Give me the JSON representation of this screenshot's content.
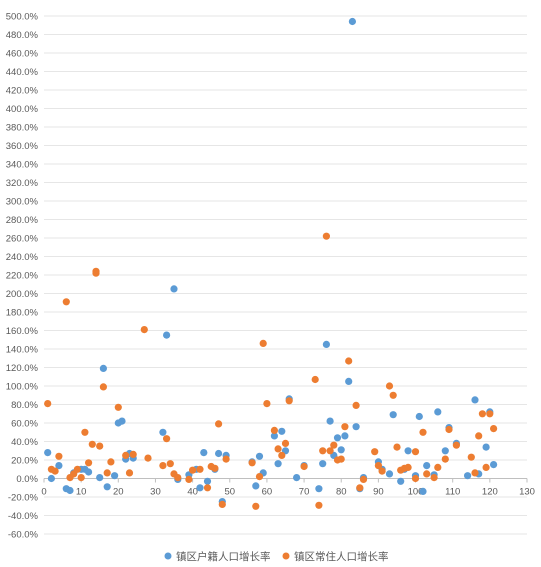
{
  "chart_data": {
    "type": "scatter",
    "title": "",
    "xlabel": "",
    "ylabel": "",
    "xlim": [
      0,
      130
    ],
    "ylim": [
      -60,
      500
    ],
    "x_ticks": [
      0,
      10,
      20,
      30,
      40,
      50,
      60,
      70,
      80,
      90,
      100,
      110,
      120,
      130
    ],
    "y_ticks": [
      -60,
      -40,
      -20,
      0,
      20,
      40,
      60,
      80,
      100,
      120,
      140,
      160,
      180,
      200,
      220,
      240,
      260,
      280,
      300,
      320,
      340,
      360,
      380,
      400,
      420,
      440,
      460,
      480,
      500
    ],
    "x_tick_labels": [
      "0",
      "10",
      "20",
      "30",
      "40",
      "50",
      "60",
      "70",
      "80",
      "90",
      "100",
      "110",
      "120",
      "130"
    ],
    "y_tick_labels": [
      "-60.0%",
      "-40.0%",
      "-20.0%",
      "0.0%",
      "20.0%",
      "40.0%",
      "60.0%",
      "80.0%",
      "100.0%",
      "120.0%",
      "140.0%",
      "160.0%",
      "180.0%",
      "200.0%",
      "220.0%",
      "240.0%",
      "260.0%",
      "280.0%",
      "300.0%",
      "320.0%",
      "340.0%",
      "360.0%",
      "380.0%",
      "400.0%",
      "420.0%",
      "440.0%",
      "460.0%",
      "480.0%",
      "500.0%"
    ],
    "gridlines": "horizontal",
    "legend_position": "bottom",
    "series": [
      {
        "name": "镇区户籍人口增长率",
        "color": "#5b9bd5",
        "points": [
          [
            1,
            28
          ],
          [
            2,
            0
          ],
          [
            4,
            14
          ],
          [
            6,
            -11
          ],
          [
            7,
            -13
          ],
          [
            8,
            6
          ],
          [
            10,
            10
          ],
          [
            11,
            10
          ],
          [
            12,
            7
          ],
          [
            15,
            1
          ],
          [
            16,
            119
          ],
          [
            17,
            -9
          ],
          [
            19,
            3
          ],
          [
            20,
            60
          ],
          [
            21,
            62
          ],
          [
            22,
            21
          ],
          [
            23,
            27
          ],
          [
            24,
            22
          ],
          [
            32,
            50
          ],
          [
            33,
            155
          ],
          [
            35,
            205
          ],
          [
            36,
            -1
          ],
          [
            39,
            4
          ],
          [
            41,
            10
          ],
          [
            42,
            -10
          ],
          [
            43,
            28
          ],
          [
            44,
            -3
          ],
          [
            46,
            10
          ],
          [
            47,
            27
          ],
          [
            48,
            -25
          ],
          [
            49,
            25
          ],
          [
            56,
            18
          ],
          [
            57,
            -8
          ],
          [
            58,
            24
          ],
          [
            59,
            6
          ],
          [
            62,
            46
          ],
          [
            63,
            16
          ],
          [
            64,
            51
          ],
          [
            65,
            30
          ],
          [
            66,
            86
          ],
          [
            68,
            1
          ],
          [
            70,
            14
          ],
          [
            74,
            -11
          ],
          [
            75,
            16
          ],
          [
            76,
            145
          ],
          [
            77,
            62
          ],
          [
            78,
            25
          ],
          [
            79,
            44
          ],
          [
            80,
            31
          ],
          [
            81,
            46
          ],
          [
            82,
            105
          ],
          [
            83,
            494
          ],
          [
            84,
            56
          ],
          [
            85,
            -11
          ],
          [
            86,
            1
          ],
          [
            90,
            18
          ],
          [
            91,
            10
          ],
          [
            93,
            5
          ],
          [
            94,
            69
          ],
          [
            96,
            -3
          ],
          [
            97,
            10
          ],
          [
            98,
            30
          ],
          [
            100,
            3
          ],
          [
            101,
            67
          ],
          [
            102,
            -14
          ],
          [
            103,
            14
          ],
          [
            105,
            4
          ],
          [
            106,
            72
          ],
          [
            108,
            30
          ],
          [
            109,
            55
          ],
          [
            111,
            38
          ],
          [
            114,
            3
          ],
          [
            116,
            85
          ],
          [
            117,
            5
          ],
          [
            119,
            34
          ],
          [
            120,
            72
          ],
          [
            121,
            15
          ]
        ]
      },
      {
        "name": "镇区常住人口增长率",
        "color": "#ed7d31",
        "points": [
          [
            1,
            81
          ],
          [
            2,
            10
          ],
          [
            3,
            8
          ],
          [
            4,
            24
          ],
          [
            6,
            191
          ],
          [
            7,
            1
          ],
          [
            8,
            5
          ],
          [
            9,
            10
          ],
          [
            10,
            1
          ],
          [
            11,
            50
          ],
          [
            12,
            17
          ],
          [
            13,
            37
          ],
          [
            14,
            224
          ],
          [
            14,
            222
          ],
          [
            15,
            35
          ],
          [
            16,
            99
          ],
          [
            17,
            6
          ],
          [
            18,
            18
          ],
          [
            20,
            77
          ],
          [
            22,
            25
          ],
          [
            23,
            6
          ],
          [
            24,
            26
          ],
          [
            28,
            22
          ],
          [
            27,
            161
          ],
          [
            32,
            14
          ],
          [
            33,
            43
          ],
          [
            34,
            16
          ],
          [
            35,
            5
          ],
          [
            36,
            1
          ],
          [
            39,
            -1
          ],
          [
            40,
            9
          ],
          [
            42,
            10
          ],
          [
            44,
            -10
          ],
          [
            45,
            13
          ],
          [
            46,
            11
          ],
          [
            47,
            59
          ],
          [
            48,
            -28
          ],
          [
            49,
            21
          ],
          [
            56,
            17
          ],
          [
            57,
            -30
          ],
          [
            58,
            2
          ],
          [
            59,
            146
          ],
          [
            60,
            81
          ],
          [
            62,
            52
          ],
          [
            63,
            32
          ],
          [
            64,
            25
          ],
          [
            65,
            38
          ],
          [
            66,
            84
          ],
          [
            70,
            13
          ],
          [
            73,
            107
          ],
          [
            74,
            -29
          ],
          [
            75,
            30
          ],
          [
            76,
            262
          ],
          [
            77,
            30
          ],
          [
            78,
            36
          ],
          [
            79,
            20
          ],
          [
            80,
            21
          ],
          [
            81,
            56
          ],
          [
            82,
            127
          ],
          [
            84,
            79
          ],
          [
            85,
            -10
          ],
          [
            86,
            -1
          ],
          [
            89,
            29
          ],
          [
            90,
            14
          ],
          [
            91,
            8
          ],
          [
            93,
            100
          ],
          [
            94,
            90
          ],
          [
            95,
            34
          ],
          [
            96,
            9
          ],
          [
            97,
            11
          ],
          [
            98,
            12
          ],
          [
            100,
            0
          ],
          [
            100,
            29
          ],
          [
            102,
            50
          ],
          [
            103,
            5
          ],
          [
            105,
            1
          ],
          [
            106,
            12
          ],
          [
            108,
            21
          ],
          [
            109,
            53
          ],
          [
            111,
            36
          ],
          [
            115,
            23
          ],
          [
            116,
            6
          ],
          [
            117,
            46
          ],
          [
            118,
            70
          ],
          [
            119,
            12
          ],
          [
            120,
            70
          ],
          [
            121,
            54
          ]
        ]
      }
    ]
  }
}
